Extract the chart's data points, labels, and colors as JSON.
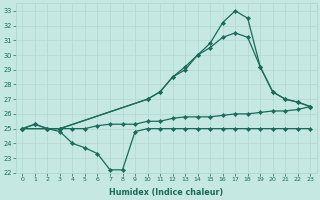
{
  "xlabel": "Humidex (Indice chaleur)",
  "xlim": [
    -0.5,
    23.5
  ],
  "ylim": [
    22,
    33.5
  ],
  "yticks": [
    22,
    23,
    24,
    25,
    26,
    27,
    28,
    29,
    30,
    31,
    32,
    33
  ],
  "xticks": [
    0,
    1,
    2,
    3,
    4,
    5,
    6,
    7,
    8,
    9,
    10,
    11,
    12,
    13,
    14,
    15,
    16,
    17,
    18,
    19,
    20,
    21,
    22,
    23
  ],
  "bg_color": "#c6e8e2",
  "line_color": "#1a6b5a",
  "grid_color": "#b0d8d0",
  "lines": [
    {
      "x": [
        0,
        1,
        2,
        3,
        4,
        5,
        6,
        7,
        8,
        9,
        10,
        11,
        12,
        13,
        14,
        15,
        16,
        17,
        18,
        19,
        20,
        21,
        22,
        23
      ],
      "y": [
        25.0,
        25.3,
        25.0,
        25.0,
        25.0,
        25.0,
        25.2,
        25.3,
        25.3,
        25.3,
        25.5,
        25.5,
        25.7,
        25.8,
        25.8,
        25.8,
        25.9,
        26.0,
        26.0,
        26.1,
        26.2,
        26.2,
        26.3,
        26.5
      ]
    },
    {
      "x": [
        0,
        2,
        3,
        4,
        5,
        6,
        7,
        8,
        9,
        10,
        11,
        12,
        13,
        14,
        15,
        16,
        17,
        18,
        19,
        20,
        21,
        22,
        23
      ],
      "y": [
        25.0,
        25.0,
        24.8,
        24.0,
        23.7,
        23.3,
        22.2,
        22.2,
        24.8,
        25.0,
        25.0,
        25.0,
        25.0,
        25.0,
        25.0,
        25.0,
        25.0,
        25.0,
        25.0,
        25.0,
        25.0,
        25.0,
        25.0
      ]
    },
    {
      "x": [
        0,
        3,
        10,
        11,
        12,
        13,
        14,
        15,
        16,
        17,
        18,
        19,
        20,
        21,
        22,
        23
      ],
      "y": [
        25.0,
        25.0,
        27.0,
        27.5,
        28.5,
        29.2,
        30.0,
        30.8,
        32.2,
        33.0,
        32.5,
        29.2,
        27.5,
        27.0,
        26.8,
        26.5
      ]
    },
    {
      "x": [
        0,
        1,
        2,
        3,
        10,
        11,
        12,
        13,
        14,
        15,
        16,
        17,
        18,
        19,
        20,
        21,
        22,
        23
      ],
      "y": [
        25.0,
        25.3,
        25.0,
        25.0,
        27.0,
        27.5,
        28.5,
        29.0,
        30.0,
        30.5,
        31.2,
        31.5,
        31.2,
        29.2,
        27.5,
        27.0,
        26.8,
        26.5
      ]
    }
  ]
}
